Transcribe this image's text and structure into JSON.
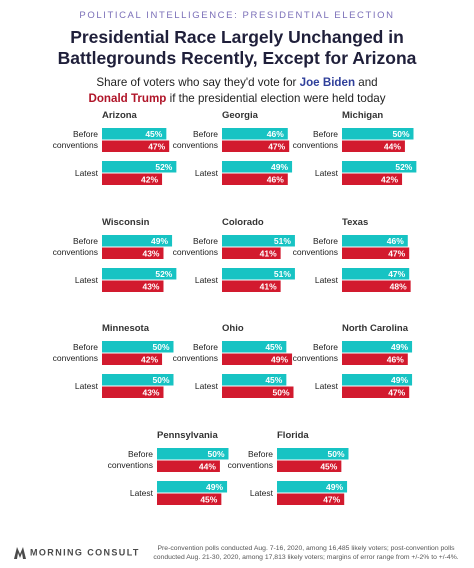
{
  "header": {
    "kicker": "POLITICAL INTELLIGENCE: PRESIDENTIAL ELECTION",
    "title": "Presidential Race Largely Unchanged in Battlegrounds Recently, Except for Arizona",
    "subtitle_pre": "Share of voters who say they'd vote for ",
    "biden": "Joe Biden",
    "subtitle_mid": " and",
    "trump": "Donald Trump",
    "subtitle_post": " if the presidential election were held today"
  },
  "colors": {
    "biden": "#17c3c3",
    "trump": "#d21a2e"
  },
  "chart_data": {
    "type": "bar",
    "row_labels": [
      "Before conventions",
      "Latest"
    ],
    "unit": "%",
    "states": [
      {
        "name": "Arizona",
        "before": {
          "biden": 45,
          "trump": 47
        },
        "latest": {
          "biden": 52,
          "trump": 42
        }
      },
      {
        "name": "Georgia",
        "before": {
          "biden": 46,
          "trump": 47
        },
        "latest": {
          "biden": 49,
          "trump": 46
        }
      },
      {
        "name": "Michigan",
        "before": {
          "biden": 50,
          "trump": 44
        },
        "latest": {
          "biden": 52,
          "trump": 42
        }
      },
      {
        "name": "Wisconsin",
        "before": {
          "biden": 49,
          "trump": 43
        },
        "latest": {
          "biden": 52,
          "trump": 43
        }
      },
      {
        "name": "Colorado",
        "before": {
          "biden": 51,
          "trump": 41
        },
        "latest": {
          "biden": 51,
          "trump": 41
        }
      },
      {
        "name": "Texas",
        "before": {
          "biden": 46,
          "trump": 47
        },
        "latest": {
          "biden": 47,
          "trump": 48
        }
      },
      {
        "name": "Minnesota",
        "before": {
          "biden": 50,
          "trump": 42
        },
        "latest": {
          "biden": 50,
          "trump": 43
        }
      },
      {
        "name": "Ohio",
        "before": {
          "biden": 45,
          "trump": 49
        },
        "latest": {
          "biden": 45,
          "trump": 50
        }
      },
      {
        "name": "North Carolina",
        "before": {
          "biden": 49,
          "trump": 46
        },
        "latest": {
          "biden": 49,
          "trump": 47
        }
      },
      {
        "name": "Pennsylvania",
        "before": {
          "biden": 50,
          "trump": 44
        },
        "latest": {
          "biden": 49,
          "trump": 45
        }
      },
      {
        "name": "Florida",
        "before": {
          "biden": 50,
          "trump": 45
        },
        "latest": {
          "biden": 49,
          "trump": 47
        }
      }
    ]
  },
  "footer": {
    "logo": "MORNING CONSULT",
    "note": "Pre-convention polls conducted Aug. 7-16, 2020, among 16,485 likely voters; post-convention polls conducted Aug. 21-30, 2020, among 17,813 likely voters; margins of error range from +/-2% to +/-4%."
  }
}
